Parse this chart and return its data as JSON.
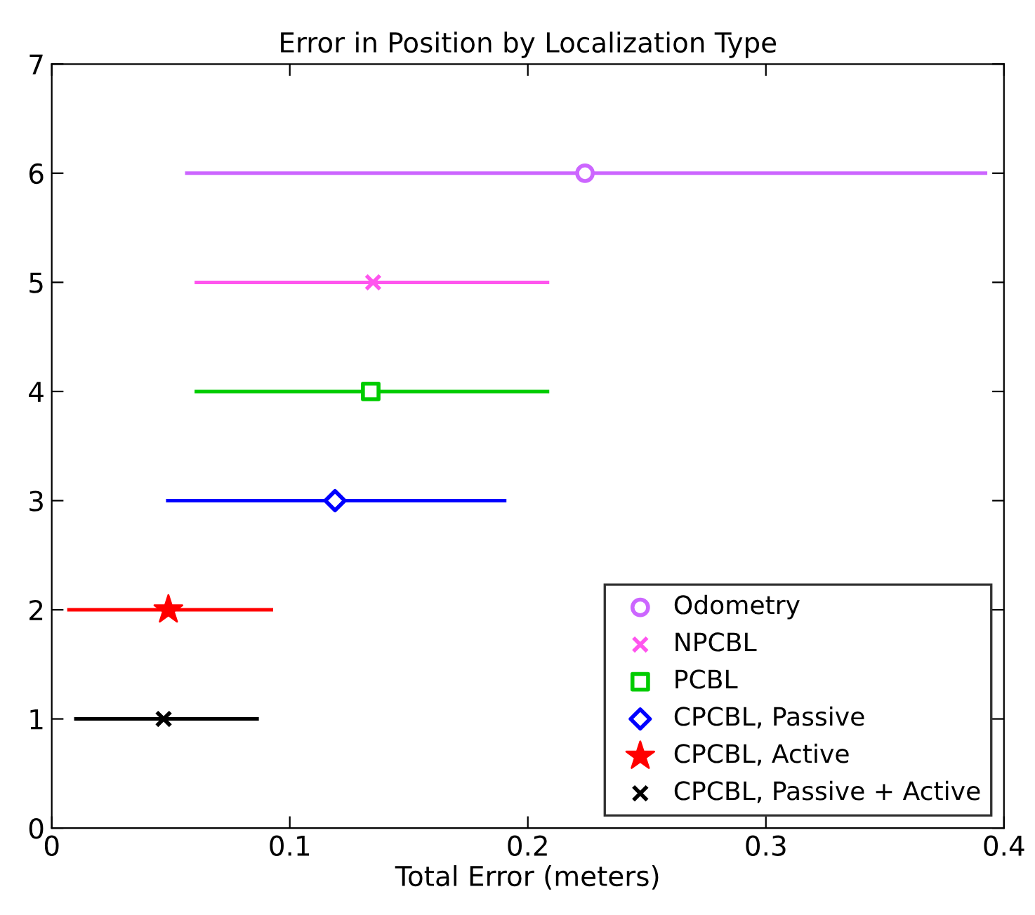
{
  "chart_data": {
    "type": "scatter",
    "title": "Error in Position by Localization Type",
    "xlabel": "Total Error (meters)",
    "xlim": [
      0,
      0.4
    ],
    "xticks": [
      0,
      0.1,
      0.2,
      0.3,
      0.4
    ],
    "ylim": [
      0,
      7
    ],
    "yticks": [
      0,
      1,
      2,
      3,
      4,
      5,
      6,
      7
    ],
    "grid": false,
    "legend": "bottom right",
    "series": [
      {
        "name": "Odometry",
        "color": "#cc66ff",
        "marker": "circle",
        "x": [
          0.224
        ],
        "values": [
          6
        ],
        "xerrors": [
          [
            0.056,
            0.393
          ]
        ]
      },
      {
        "name": "NPCBL",
        "color": "#ff55ee",
        "marker": "cross",
        "x": [
          0.135
        ],
        "values": [
          5
        ],
        "xerrors": [
          [
            0.06,
            0.209
          ]
        ]
      },
      {
        "name": "PCBL",
        "color": "#00cc00",
        "marker": "square",
        "x": [
          0.134
        ],
        "values": [
          4
        ],
        "xerrors": [
          [
            0.06,
            0.209
          ]
        ]
      },
      {
        "name": "CPCBL, Passive",
        "color": "#0000ff",
        "marker": "diamond",
        "x": [
          0.119
        ],
        "values": [
          3
        ],
        "xerrors": [
          [
            0.048,
            0.191
          ]
        ]
      },
      {
        "name": "CPCBL, Active",
        "color": "#ff0000",
        "marker": "star",
        "x": [
          0.049
        ],
        "values": [
          2
        ],
        "xerrors": [
          [
            0.0065,
            0.093
          ]
        ]
      },
      {
        "name": "CPCBL, Passive + Active",
        "color": "#000000",
        "marker": "cross",
        "x": [
          0.047
        ],
        "values": [
          1
        ],
        "xerrors": [
          [
            0.0094,
            0.087
          ]
        ]
      }
    ]
  }
}
